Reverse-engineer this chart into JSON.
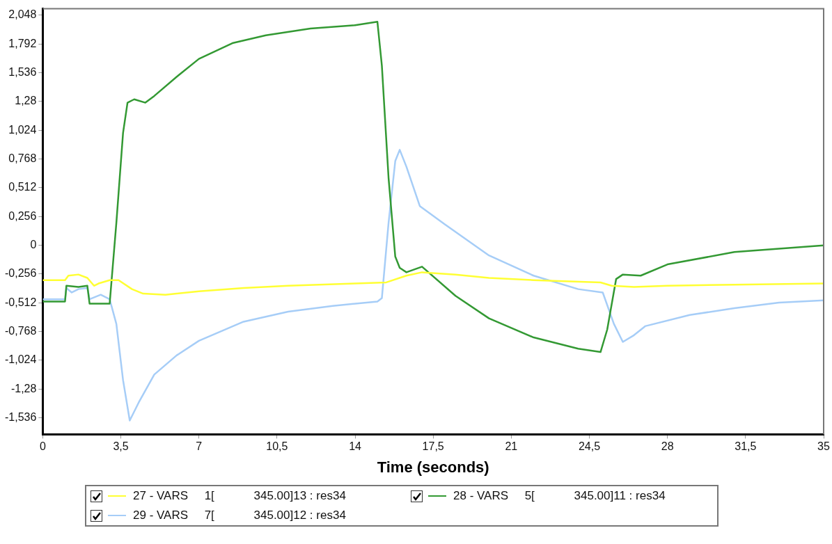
{
  "chart_data": {
    "type": "line",
    "xlabel": "Time (seconds)",
    "legend": "bottom",
    "grid": false,
    "xlim": [
      0,
      35
    ],
    "ylim": [
      -1.683,
      2.106
    ],
    "xticks": [
      0,
      {
        "value": 3.5,
        "label": "3,5"
      },
      7,
      {
        "value": 10.5,
        "label": "10,5"
      },
      14,
      {
        "value": 17.5,
        "label": "17,5"
      },
      21,
      {
        "value": 24.5,
        "label": "24,5"
      },
      28,
      {
        "value": 31.5,
        "label": "31,5"
      },
      35
    ],
    "yticks": [
      {
        "value": 2.048,
        "label": "2,048"
      },
      {
        "value": 1.792,
        "label": "1,792"
      },
      {
        "value": 1.536,
        "label": "1,536"
      },
      {
        "value": 1.28,
        "label": "1,28"
      },
      {
        "value": 1.024,
        "label": "1,024"
      },
      {
        "value": 0.768,
        "label": "0,768"
      },
      {
        "value": 0.512,
        "label": "0,512"
      },
      {
        "value": 0.256,
        "label": "0,256"
      },
      0,
      {
        "value": -0.256,
        "label": "-0,256"
      },
      {
        "value": -0.512,
        "label": "-0,512"
      },
      {
        "value": -0.768,
        "label": "-0,768"
      },
      {
        "value": -1.024,
        "label": "-1,024"
      },
      {
        "value": -1.28,
        "label": "-1,28"
      },
      {
        "value": -1.536,
        "label": "-1,536"
      }
    ],
    "series": [
      {
        "name": "27 - VARS     1[            345.00]13 : res34",
        "color": "#ffff33",
        "x": [
          0,
          1.0,
          1.15,
          1.6,
          2.0,
          2.3,
          2.5,
          3.0,
          3.4,
          4.0,
          4.5,
          5.5,
          6,
          7,
          9,
          11,
          14,
          15.4,
          16.3,
          17,
          18.5,
          20,
          22,
          25,
          25.5,
          26.5,
          28,
          31,
          35
        ],
        "values": [
          -0.31,
          -0.31,
          -0.27,
          -0.26,
          -0.29,
          -0.36,
          -0.34,
          -0.31,
          -0.31,
          -0.39,
          -0.43,
          -0.44,
          -0.43,
          -0.41,
          -0.38,
          -0.36,
          -0.34,
          -0.33,
          -0.27,
          -0.24,
          -0.26,
          -0.29,
          -0.31,
          -0.33,
          -0.36,
          -0.37,
          -0.36,
          -0.35,
          -0.34
        ]
      },
      {
        "name": "28 - VARS     5[            345.00]11 : res34",
        "color": "#339933",
        "x": [
          0,
          1.0,
          1.06,
          1.6,
          2.0,
          2.1,
          2.3,
          3.0,
          3.3,
          3.6,
          3.8,
          4.1,
          4.6,
          5.0,
          6,
          7,
          8.5,
          10,
          12,
          14,
          15.0,
          15.2,
          15.5,
          15.8,
          16.0,
          16.3,
          17,
          18.5,
          20,
          22,
          24,
          25,
          25.3,
          25.7,
          26.0,
          26.8,
          28,
          31,
          33,
          35
        ],
        "values": [
          -0.5,
          -0.5,
          -0.36,
          -0.37,
          -0.36,
          -0.52,
          -0.52,
          -0.52,
          0.2,
          1.0,
          1.27,
          1.3,
          1.27,
          1.33,
          1.5,
          1.66,
          1.8,
          1.87,
          1.93,
          1.96,
          1.99,
          1.6,
          0.6,
          -0.1,
          -0.2,
          -0.24,
          -0.19,
          -0.45,
          -0.65,
          -0.82,
          -0.92,
          -0.95,
          -0.75,
          -0.3,
          -0.26,
          -0.27,
          -0.17,
          -0.06,
          -0.03,
          0.0
        ]
      },
      {
        "name": "29 - VARS     7[            345.00]12 : res34",
        "color": "#a6cdf7",
        "x": [
          0,
          1.0,
          1.06,
          1.3,
          1.6,
          2.0,
          2.1,
          2.6,
          3.0,
          3.3,
          3.6,
          3.9,
          4.3,
          5,
          6,
          7,
          9,
          11,
          13,
          15,
          15.2,
          15.5,
          15.8,
          16.0,
          16.3,
          16.9,
          18,
          20,
          22,
          24,
          25.1,
          25.6,
          26.0,
          26.5,
          27,
          29,
          31,
          33,
          35
        ],
        "values": [
          -0.48,
          -0.48,
          -0.38,
          -0.42,
          -0.39,
          -0.38,
          -0.48,
          -0.44,
          -0.48,
          -0.7,
          -1.2,
          -1.56,
          -1.4,
          -1.15,
          -0.98,
          -0.85,
          -0.68,
          -0.59,
          -0.54,
          -0.5,
          -0.47,
          0.2,
          0.75,
          0.85,
          0.7,
          0.35,
          0.19,
          -0.09,
          -0.27,
          -0.39,
          -0.42,
          -0.7,
          -0.86,
          -0.8,
          -0.72,
          -0.62,
          -0.56,
          -0.51,
          -0.49
        ]
      }
    ]
  }
}
